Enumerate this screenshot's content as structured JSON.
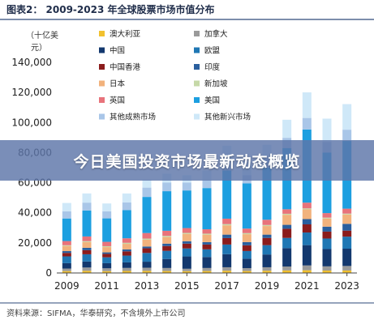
{
  "figure": {
    "title": "图表2：  2009-2023 年全球股票市场市值分布",
    "unit_line1": "（十亿美",
    "unit_line2": "元）",
    "source": "资料来源：SIFMA，华泰研究，不含境外上市公司"
  },
  "banner": {
    "text": "今日美国投资市场最新动态概览"
  },
  "chart_data": {
    "type": "bar",
    "stacked": true,
    "categories": [
      "2009",
      "2010",
      "2011",
      "2012",
      "2013",
      "2014",
      "2015",
      "2016",
      "2017",
      "2018",
      "2019",
      "2020",
      "2021",
      "2022",
      "2023"
    ],
    "x_tick_labels": [
      "2009",
      "2011",
      "2013",
      "2015",
      "2017",
      "2019",
      "2021",
      "2023"
    ],
    "y_ticks": [
      "0",
      "20,000",
      "40,000",
      "60,000",
      "80,000",
      "100,000",
      "120,000",
      "140,000"
    ],
    "ylim": [
      0,
      140000
    ],
    "grid": false,
    "legend_position": "top-left, two columns",
    "series": [
      {
        "name": "澳大利亚",
        "color": "#f2c12e",
        "values": [
          1250,
          1450,
          1200,
          1350,
          1400,
          1300,
          1200,
          1300,
          1500,
          1300,
          1500,
          1700,
          1800,
          1600,
          1650
        ]
      },
      {
        "name": "加拿大",
        "color": "#9a9a9a",
        "values": [
          1680,
          2170,
          1900,
          2000,
          2100,
          2000,
          1600,
          2000,
          2300,
          1900,
          2300,
          2600,
          3200,
          2800,
          3000
        ]
      },
      {
        "name": "中国",
        "color": "#13386e",
        "values": [
          3600,
          4000,
          3400,
          3700,
          4000,
          6000,
          8200,
          7300,
          8700,
          6300,
          8500,
          12200,
          13500,
          11500,
          11500
        ]
      },
      {
        "name": "欧盟",
        "color": "#1f77b4",
        "values": [
          4500,
          4800,
          3900,
          4500,
          5800,
          5400,
          5300,
          5100,
          6400,
          5100,
          6200,
          6800,
          8400,
          7000,
          8000
        ]
      },
      {
        "name": "中国香港",
        "color": "#8b1c1c",
        "values": [
          2300,
          2700,
          2300,
          2800,
          3100,
          3200,
          3200,
          3200,
          4300,
          3800,
          4800,
          6100,
          5400,
          4600,
          4000
        ]
      },
      {
        "name": "印度",
        "color": "#2a5f9e",
        "values": [
          1200,
          1600,
          1000,
          1300,
          1200,
          1600,
          1600,
          1600,
          2300,
          2100,
          2200,
          2600,
          3500,
          3300,
          4500
        ]
      },
      {
        "name": "日本",
        "color": "#f2b27c",
        "values": [
          3400,
          3800,
          3500,
          3700,
          4500,
          4400,
          4900,
          5000,
          6200,
          5300,
          5700,
          6700,
          6500,
          5400,
          6200
        ]
      },
      {
        "name": "新加坡",
        "color": "#c6d9a8",
        "values": [
          500,
          650,
          600,
          700,
          750,
          750,
          650,
          650,
          800,
          700,
          700,
          650,
          650,
          600,
          600
        ]
      },
      {
        "name": "英国",
        "color": "#e8737b",
        "values": [
          2800,
          3100,
          2900,
          3000,
          3700,
          3400,
          3200,
          2900,
          3600,
          3000,
          3500,
          3000,
          3800,
          3000,
          3300
        ]
      },
      {
        "name": "美国",
        "color": "#1c9fe0",
        "values": [
          15000,
          17300,
          15600,
          18700,
          24000,
          26300,
          25000,
          27400,
          32000,
          30000,
          34600,
          40700,
          48600,
          40300,
          45000
        ]
      },
      {
        "name": "其他成熟市场",
        "color": "#a9c6e8",
        "values": [
          4800,
          5200,
          4700,
          5200,
          6200,
          5700,
          5300,
          5300,
          6500,
          5500,
          6200,
          6800,
          7700,
          7000,
          7500
        ]
      },
      {
        "name": "其他新兴市场",
        "color": "#cfe8f8",
        "values": [
          5500,
          6100,
          5200,
          5900,
          5300,
          6000,
          4800,
          6300,
          10000,
          8500,
          9000,
          12000,
          17000,
          15500,
          17000
        ]
      }
    ]
  }
}
